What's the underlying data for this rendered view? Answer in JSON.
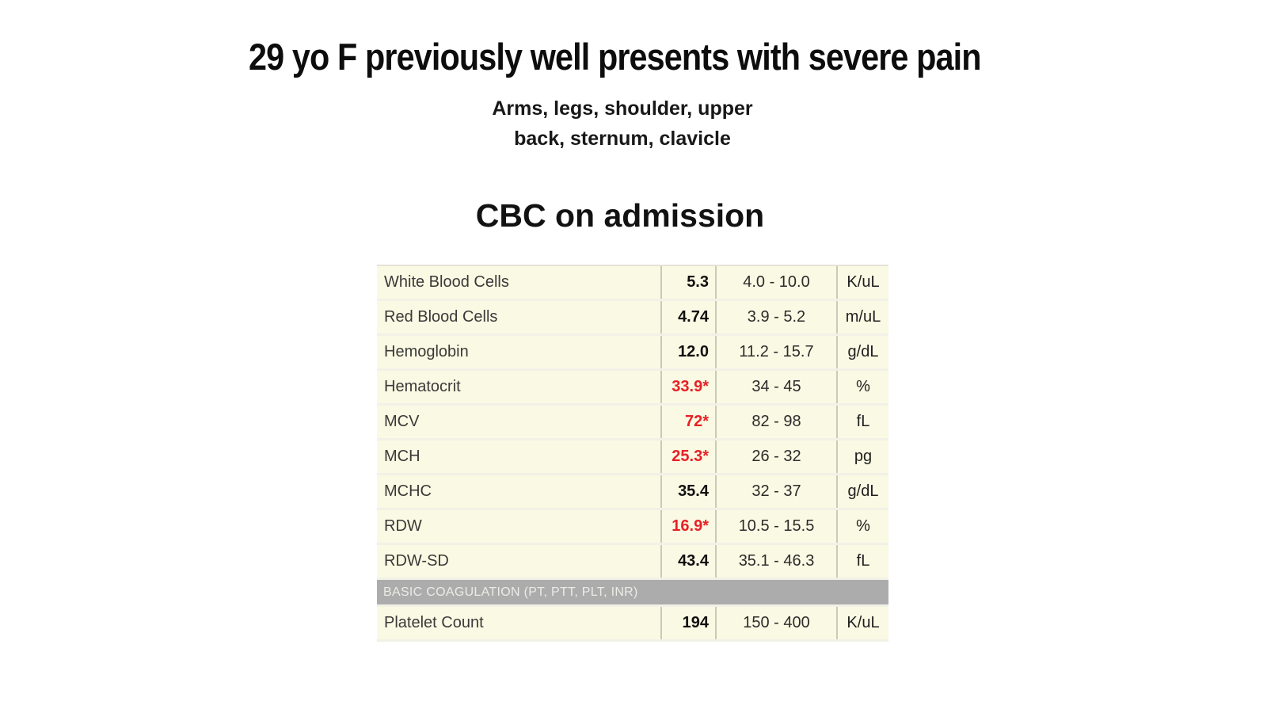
{
  "slide": {
    "title": "29 yo F previously well presents with severe pain",
    "subtitle_line1": "Arms, legs, shoulder, upper",
    "subtitle_line2": "back, sternum, clavicle",
    "section_heading": "CBC on admission"
  },
  "colors": {
    "abnormal_value_red": "#e82026",
    "row_background_cream": "#faf9e3",
    "section_band_gray": "#acacac",
    "section_band_text": "#ecebe7"
  },
  "table": {
    "rows": [
      {
        "type": "result",
        "name": "White Blood Cells",
        "value": "5.3",
        "range": "4.0 - 10.0",
        "units": "K/uL",
        "abnormal": false
      },
      {
        "type": "result",
        "name": "Red Blood Cells",
        "value": "4.74",
        "range": "3.9 - 5.2",
        "units": "m/uL",
        "abnormal": false
      },
      {
        "type": "result",
        "name": "Hemoglobin",
        "value": "12.0",
        "range": "11.2 - 15.7",
        "units": "g/dL",
        "abnormal": false
      },
      {
        "type": "result",
        "name": "Hematocrit",
        "value": "33.9*",
        "range": "34 - 45",
        "units": "%",
        "abnormal": true
      },
      {
        "type": "result",
        "name": "MCV",
        "value": "72*",
        "range": "82 - 98",
        "units": "fL",
        "abnormal": true
      },
      {
        "type": "result",
        "name": "MCH",
        "value": "25.3*",
        "range": "26 - 32",
        "units": "pg",
        "abnormal": true
      },
      {
        "type": "result",
        "name": "MCHC",
        "value": "35.4",
        "range": "32 - 37",
        "units": "g/dL",
        "abnormal": false
      },
      {
        "type": "result",
        "name": "RDW",
        "value": "16.9*",
        "range": "10.5 - 15.5",
        "units": "%",
        "abnormal": true
      },
      {
        "type": "result",
        "name": "RDW-SD",
        "value": "43.4",
        "range": "35.1 - 46.3",
        "units": "fL",
        "abnormal": false
      },
      {
        "type": "section",
        "label": "BASIC COAGULATION (PT, PTT, PLT, INR)"
      },
      {
        "type": "result",
        "name": "Platelet Count",
        "value": "194",
        "range": "150 - 400",
        "units": "K/uL",
        "abnormal": false
      }
    ]
  }
}
